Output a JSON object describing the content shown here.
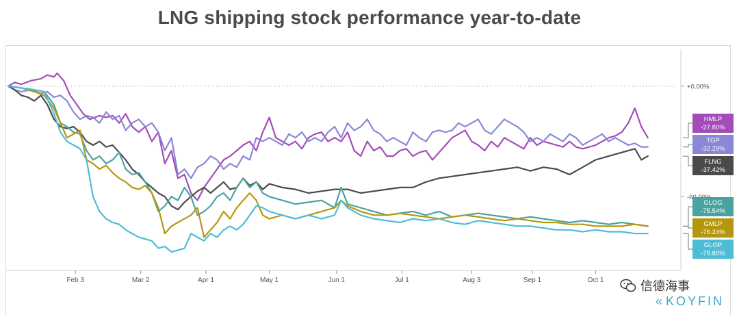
{
  "title": "LNG shipping stock performance year-to-date",
  "watermark_text": "信德海事",
  "brand_text": "KOYFIN",
  "chart_data": {
    "type": "line",
    "title": "LNG shipping stock performance year-to-date",
    "x_ticks": [
      "Feb 3",
      "Mar 2",
      "Apr 1",
      "May 1",
      "Jun 1",
      "Jul 1",
      "Aug 3",
      "Sep 1",
      "Oct 1"
    ],
    "x_tick_values": [
      1.03,
      2.03,
      3.03,
      4.0,
      5.03,
      6.03,
      7.1,
      8.03,
      9.0
    ],
    "x_range": [
      0,
      10.2
    ],
    "y_ticks": [
      "+0.00%",
      "-60.00%"
    ],
    "y_tick_values": [
      0,
      -60
    ],
    "y_range": [
      -100,
      20
    ],
    "y_axis_position": "right",
    "grid": "horizontal dotted at 0%",
    "series": [
      {
        "name": "HMLP",
        "label": "-27.80%",
        "color": "#a24cb8",
        "x": [
          0,
          0.1,
          0.2,
          0.35,
          0.5,
          0.6,
          0.7,
          0.75,
          0.85,
          0.95,
          1.05,
          1.15,
          1.25,
          1.4,
          1.5,
          1.6,
          1.7,
          1.8,
          1.9,
          2.0,
          2.1,
          2.2,
          2.3,
          2.4,
          2.5,
          2.6,
          2.7,
          2.8,
          2.9,
          3.0,
          3.1,
          3.2,
          3.3,
          3.4,
          3.5,
          3.6,
          3.7,
          3.8,
          3.9,
          4.0,
          4.1,
          4.2,
          4.3,
          4.4,
          4.5,
          4.6,
          4.7,
          4.8,
          4.9,
          5.0,
          5.1,
          5.2,
          5.3,
          5.4,
          5.5,
          5.6,
          5.7,
          5.8,
          5.9,
          6.0,
          6.1,
          6.2,
          6.3,
          6.4,
          6.5,
          6.6,
          6.7,
          6.8,
          6.9,
          7.0,
          7.1,
          7.2,
          7.3,
          7.4,
          7.5,
          7.6,
          7.7,
          7.8,
          7.9,
          8.0,
          8.1,
          8.2,
          8.3,
          8.4,
          8.5,
          8.6,
          8.7,
          8.8,
          8.9,
          9.0,
          9.1,
          9.2,
          9.3,
          9.4,
          9.5,
          9.6,
          9.7,
          9.8
        ],
        "y": [
          0,
          2,
          1,
          3,
          4,
          6,
          5,
          7,
          3,
          -5,
          -10,
          -15,
          -18,
          -16,
          -17,
          -16,
          -20,
          -15,
          -22,
          -25,
          -22,
          -30,
          -25,
          -42,
          -35,
          -50,
          -48,
          -58,
          -62,
          -55,
          -50,
          -45,
          -40,
          -38,
          -35,
          -32,
          -30,
          -35,
          -25,
          -17,
          -28,
          -30,
          -32,
          -30,
          -34,
          -28,
          -26,
          -25,
          -30,
          -28,
          -30,
          -25,
          -35,
          -38,
          -30,
          -35,
          -33,
          -38,
          -38,
          -35,
          -34,
          -38,
          -36,
          -35,
          -40,
          -36,
          -32,
          -28,
          -26,
          -24,
          -30,
          -32,
          -35,
          -30,
          -33,
          -28,
          -30,
          -32,
          -34,
          -28,
          -32,
          -30,
          -31,
          -32,
          -33,
          -30,
          -33,
          -34,
          -33,
          -32,
          -30,
          -28,
          -27,
          -25,
          -20,
          -12,
          -22,
          -28
        ]
      },
      {
        "name": "TGP",
        "label": "-32.29%",
        "color": "#8b86d6",
        "x": [
          0,
          0.1,
          0.2,
          0.35,
          0.5,
          0.6,
          0.7,
          0.8,
          0.9,
          1.0,
          1.1,
          1.2,
          1.3,
          1.4,
          1.5,
          1.6,
          1.7,
          1.8,
          1.9,
          2.0,
          2.1,
          2.2,
          2.3,
          2.4,
          2.5,
          2.6,
          2.7,
          2.8,
          2.9,
          3.0,
          3.1,
          3.2,
          3.3,
          3.4,
          3.5,
          3.6,
          3.7,
          3.8,
          3.9,
          4.0,
          4.1,
          4.2,
          4.3,
          4.4,
          4.5,
          4.6,
          4.7,
          4.8,
          4.9,
          5.0,
          5.1,
          5.2,
          5.3,
          5.4,
          5.5,
          5.6,
          5.7,
          5.8,
          5.9,
          6.0,
          6.1,
          6.2,
          6.3,
          6.4,
          6.5,
          6.6,
          6.7,
          6.8,
          6.9,
          7.0,
          7.1,
          7.2,
          7.3,
          7.4,
          7.5,
          7.6,
          7.7,
          7.8,
          7.9,
          8.0,
          8.1,
          8.2,
          8.3,
          8.4,
          8.5,
          8.6,
          8.7,
          8.8,
          8.9,
          9.0,
          9.1,
          9.2,
          9.3,
          9.4,
          9.5,
          9.6,
          9.7,
          9.8
        ],
        "y": [
          0,
          -2,
          -3,
          -2,
          -4,
          -3,
          -6,
          -5,
          -8,
          -14,
          -18,
          -16,
          -17,
          -20,
          -14,
          -18,
          -16,
          -24,
          -20,
          -18,
          -22,
          -20,
          -25,
          -35,
          -28,
          -48,
          -45,
          -50,
          -44,
          -42,
          -38,
          -40,
          -45,
          -42,
          -44,
          -38,
          -40,
          -28,
          -30,
          -28,
          -30,
          -32,
          -26,
          -28,
          -25,
          -30,
          -28,
          -30,
          -25,
          -22,
          -28,
          -20,
          -24,
          -22,
          -18,
          -24,
          -26,
          -30,
          -28,
          -30,
          -32,
          -25,
          -28,
          -30,
          -25,
          -24,
          -25,
          -24,
          -20,
          -22,
          -20,
          -18,
          -24,
          -26,
          -22,
          -18,
          -20,
          -22,
          -25,
          -30,
          -28,
          -30,
          -26,
          -28,
          -30,
          -26,
          -28,
          -32,
          -30,
          -28,
          -26,
          -30,
          -28,
          -30,
          -32,
          -31,
          -33,
          -33
        ]
      },
      {
        "name": "FLNG",
        "label": "-37.42%",
        "color": "#4a4a4a",
        "x": [
          0,
          0.1,
          0.2,
          0.3,
          0.4,
          0.5,
          0.6,
          0.7,
          0.8,
          0.9,
          1.0,
          1.1,
          1.2,
          1.3,
          1.4,
          1.5,
          1.6,
          1.7,
          1.8,
          1.9,
          2.0,
          2.1,
          2.2,
          2.3,
          2.4,
          2.5,
          2.6,
          2.7,
          2.8,
          2.9,
          3.0,
          3.1,
          3.2,
          3.3,
          3.4,
          3.5,
          3.6,
          3.7,
          3.8,
          3.9,
          4.0,
          4.2,
          4.4,
          4.6,
          4.8,
          5.0,
          5.2,
          5.4,
          5.6,
          5.8,
          6.0,
          6.2,
          6.4,
          6.6,
          6.8,
          7.0,
          7.2,
          7.4,
          7.6,
          7.8,
          8.0,
          8.2,
          8.4,
          8.6,
          8.8,
          9.0,
          9.2,
          9.4,
          9.6,
          9.7,
          9.8
        ],
        "y": [
          0,
          -2,
          -5,
          -6,
          -8,
          -5,
          -10,
          -18,
          -22,
          -23,
          -22,
          -25,
          -30,
          -32,
          -30,
          -33,
          -32,
          -36,
          -40,
          -45,
          -48,
          -52,
          -55,
          -58,
          -60,
          -65,
          -67,
          -63,
          -60,
          -57,
          -55,
          -58,
          -55,
          -52,
          -56,
          -55,
          -50,
          -54,
          -52,
          -56,
          -53,
          -55,
          -56,
          -58,
          -57,
          -56,
          -56,
          -58,
          -57,
          -56,
          -55,
          -55,
          -52,
          -50,
          -49,
          -48,
          -47,
          -46,
          -45,
          -44,
          -46,
          -44,
          -45,
          -48,
          -44,
          -40,
          -38,
          -36,
          -34,
          -40,
          -38
        ]
      },
      {
        "name": "GLOG",
        "label": "-75.54%",
        "color": "#4aa3a0",
        "x": [
          0,
          0.2,
          0.4,
          0.55,
          0.7,
          0.8,
          0.9,
          1.0,
          1.1,
          1.2,
          1.3,
          1.4,
          1.5,
          1.6,
          1.7,
          1.8,
          1.9,
          2.0,
          2.1,
          2.2,
          2.3,
          2.4,
          2.5,
          2.6,
          2.7,
          2.8,
          2.9,
          3.0,
          3.1,
          3.2,
          3.3,
          3.4,
          3.5,
          3.6,
          3.7,
          3.8,
          3.9,
          4.0,
          4.2,
          4.4,
          4.6,
          4.8,
          5.0,
          5.1,
          5.2,
          5.4,
          5.6,
          5.8,
          6.0,
          6.2,
          6.4,
          6.6,
          6.8,
          7.0,
          7.2,
          7.4,
          7.6,
          7.8,
          8.0,
          8.2,
          8.4,
          8.6,
          8.8,
          9.0,
          9.2,
          9.4,
          9.6,
          9.8
        ],
        "y": [
          0,
          -1,
          -2,
          -3,
          -10,
          -20,
          -22,
          -25,
          -26,
          -35,
          -40,
          -38,
          -42,
          -40,
          -36,
          -45,
          -48,
          -47,
          -52,
          -58,
          -68,
          -65,
          -60,
          -62,
          -55,
          -60,
          -70,
          -68,
          -65,
          -60,
          -58,
          -62,
          -55,
          -50,
          -55,
          -52,
          -58,
          -60,
          -62,
          -64,
          -63,
          -62,
          -66,
          -55,
          -64,
          -66,
          -68,
          -70,
          -69,
          -68,
          -70,
          -68,
          -71,
          -70,
          -69,
          -70,
          -71,
          -72,
          -71,
          -72,
          -73,
          -74,
          -73,
          -74,
          -75,
          -74,
          -75,
          -76
        ]
      },
      {
        "name": "GMLP",
        "label": "-76.24%",
        "color": "#b5970f",
        "x": [
          0,
          0.2,
          0.4,
          0.55,
          0.7,
          0.8,
          0.9,
          1.0,
          1.1,
          1.2,
          1.3,
          1.4,
          1.5,
          1.6,
          1.7,
          1.8,
          1.9,
          2.0,
          2.1,
          2.2,
          2.3,
          2.4,
          2.5,
          2.6,
          2.7,
          2.8,
          2.9,
          3.0,
          3.1,
          3.2,
          3.3,
          3.4,
          3.5,
          3.6,
          3.7,
          3.8,
          3.9,
          4.0,
          4.2,
          4.4,
          4.6,
          4.8,
          5.0,
          5.1,
          5.2,
          5.4,
          5.6,
          5.8,
          6.0,
          6.2,
          6.4,
          6.6,
          6.8,
          7.0,
          7.2,
          7.4,
          7.6,
          7.8,
          8.0,
          8.2,
          8.4,
          8.6,
          8.8,
          9.0,
          9.2,
          9.4,
          9.6,
          9.8
        ],
        "y": [
          0,
          -1,
          -3,
          -5,
          -12,
          -20,
          -28,
          -26,
          -24,
          -40,
          -42,
          -45,
          -43,
          -47,
          -50,
          -52,
          -55,
          -56,
          -54,
          -58,
          -66,
          -80,
          -76,
          -74,
          -72,
          -70,
          -66,
          -82,
          -78,
          -74,
          -68,
          -72,
          -66,
          -62,
          -58,
          -62,
          -70,
          -72,
          -70,
          -72,
          -70,
          -68,
          -66,
          -62,
          -65,
          -68,
          -70,
          -70,
          -69,
          -70,
          -71,
          -72,
          -71,
          -70,
          -71,
          -72,
          -73,
          -72,
          -73,
          -74,
          -74,
          -75,
          -75,
          -76,
          -76,
          -76,
          -75,
          -76
        ]
      },
      {
        "name": "GLOP",
        "label": "-79.80%",
        "color": "#4fbcd6",
        "x": [
          0,
          0.2,
          0.4,
          0.55,
          0.7,
          0.8,
          0.9,
          1.0,
          1.1,
          1.2,
          1.3,
          1.4,
          1.5,
          1.6,
          1.7,
          1.8,
          1.9,
          2.0,
          2.1,
          2.2,
          2.3,
          2.4,
          2.5,
          2.6,
          2.7,
          2.8,
          2.9,
          3.0,
          3.1,
          3.2,
          3.3,
          3.4,
          3.5,
          3.6,
          3.7,
          3.8,
          3.9,
          4.0,
          4.2,
          4.4,
          4.6,
          4.8,
          5.0,
          5.1,
          5.2,
          5.4,
          5.6,
          5.8,
          6.0,
          6.2,
          6.4,
          6.6,
          6.8,
          7.0,
          7.2,
          7.4,
          7.6,
          7.8,
          8.0,
          8.2,
          8.4,
          8.6,
          8.8,
          9.0,
          9.2,
          9.4,
          9.6,
          9.8
        ],
        "y": [
          0,
          -1,
          -2,
          -3,
          -15,
          -25,
          -30,
          -32,
          -34,
          -40,
          -60,
          -68,
          -72,
          -74,
          -75,
          -78,
          -80,
          -82,
          -83,
          -84,
          -88,
          -87,
          -90,
          -89,
          -88,
          -80,
          -82,
          -84,
          -80,
          -82,
          -78,
          -76,
          -78,
          -75,
          -70,
          -65,
          -66,
          -68,
          -70,
          -72,
          -70,
          -72,
          -70,
          -62,
          -66,
          -70,
          -72,
          -73,
          -74,
          -72,
          -73,
          -72,
          -74,
          -75,
          -73,
          -74,
          -75,
          -76,
          -76,
          -77,
          -78,
          -78,
          -79,
          -78,
          -79,
          -79,
          -80,
          -80
        ]
      }
    ]
  }
}
